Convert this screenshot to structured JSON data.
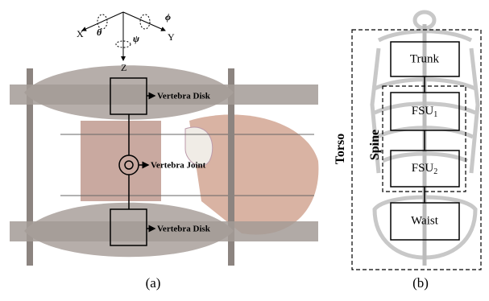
{
  "axes": {
    "x": "X",
    "y": "Y",
    "z": "Z",
    "theta": "θ",
    "phi": "ϕ",
    "psi": "ψ"
  },
  "panel_a": {
    "upper_disk": "Vertebra Disk",
    "joint": "Vertebra Joint",
    "lower_disk": "Vertebra Disk",
    "caption": "(a)"
  },
  "panel_b": {
    "trunk": "Trunk",
    "fsu1": {
      "text": "FSU",
      "sub": "1"
    },
    "fsu2": {
      "text": "FSU",
      "sub": "2"
    },
    "waist": "Waist",
    "torso": "Torso",
    "spine": "Spine",
    "caption": "(b)"
  }
}
